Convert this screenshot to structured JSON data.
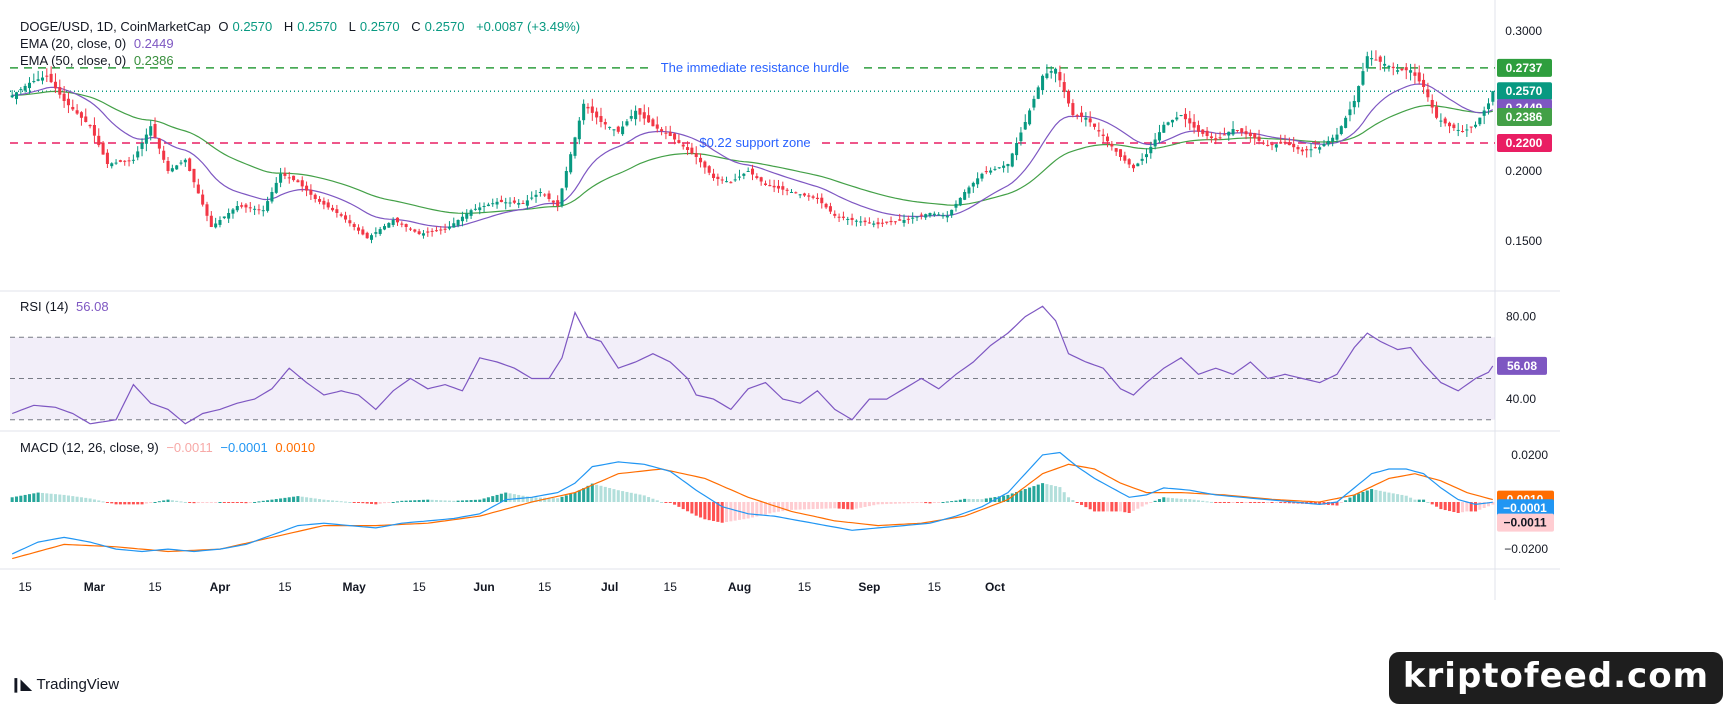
{
  "header": {
    "symbol": "DOGE/USD, 1D, CoinMarketCap",
    "o_label": "O",
    "o_value": "0.2570",
    "h_label": "H",
    "h_value": "0.2570",
    "l_label": "L",
    "l_value": "0.2570",
    "c_label": "C",
    "c_value": "0.2570",
    "change": "+0.0087 (+3.49%)",
    "ema20_label": "EMA (20, close, 0)",
    "ema20_value": "0.2449",
    "ema50_label": "EMA (50, close, 0)",
    "ema50_value": "0.2386"
  },
  "rsi_header": {
    "label": "RSI (14)",
    "value": "56.08"
  },
  "macd_header": {
    "label": "MACD (12, 26, close, 9)",
    "hist": "−0.0011",
    "macd": "−0.0001",
    "signal": "0.0010"
  },
  "footer": {
    "brand": "TradingView",
    "watermark": "kriptofeed.com"
  },
  "colors": {
    "up": "#089981",
    "down": "#f23645",
    "ema20": "#7e57c2",
    "ema50": "#43a047",
    "resistance": "#2e9e3e",
    "support": "#e91e63",
    "macd": "#2196f3",
    "signal": "#ff6d00"
  },
  "chart_data": [
    {
      "type": "candlestick",
      "title": "DOGE/USD, 1D, CoinMarketCap",
      "x_tick_labels": [
        "15",
        "Mar",
        "15",
        "Apr",
        "15",
        "May",
        "15",
        "Jun",
        "15",
        "Jul",
        "15",
        "Aug",
        "15",
        "Sep",
        "15",
        "Oct"
      ],
      "y_ticks": [
        "0.3000",
        "0.2000",
        "0.1500"
      ],
      "ylim": [
        0.115,
        0.315
      ],
      "price_labels": [
        {
          "text": "0.2737",
          "value": 0.2737,
          "color": "#2e9e3e"
        },
        {
          "text": "0.2570",
          "value": 0.257,
          "color": "#089981"
        },
        {
          "text": "0.2449",
          "value": 0.2449,
          "color": "#7e57c2"
        },
        {
          "text": "0.2386",
          "value": 0.2386,
          "color": "#43a047"
        },
        {
          "text": "0.2200",
          "value": 0.22,
          "color": "#e91e63"
        }
      ],
      "levels": [
        {
          "name": "resistance",
          "value": 0.2737,
          "annotation": "The immediate resistance hurdle"
        },
        {
          "name": "support",
          "value": 0.22,
          "annotation": "$0.22 support zone"
        },
        {
          "name": "current",
          "value": 0.257,
          "annotation": ""
        }
      ],
      "close_anchors": [
        [
          0,
          0.254
        ],
        [
          4,
          0.263
        ],
        [
          8,
          0.268
        ],
        [
          12,
          0.25
        ],
        [
          18,
          0.232
        ],
        [
          22,
          0.205
        ],
        [
          28,
          0.208
        ],
        [
          32,
          0.232
        ],
        [
          36,
          0.2
        ],
        [
          40,
          0.208
        ],
        [
          46,
          0.16
        ],
        [
          52,
          0.175
        ],
        [
          58,
          0.172
        ],
        [
          62,
          0.198
        ],
        [
          66,
          0.192
        ],
        [
          70,
          0.18
        ],
        [
          76,
          0.168
        ],
        [
          82,
          0.152
        ],
        [
          88,
          0.165
        ],
        [
          94,
          0.155
        ],
        [
          100,
          0.158
        ],
        [
          106,
          0.172
        ],
        [
          112,
          0.178
        ],
        [
          118,
          0.177
        ],
        [
          122,
          0.185
        ],
        [
          126,
          0.175
        ],
        [
          128,
          0.2
        ],
        [
          132,
          0.248
        ],
        [
          136,
          0.235
        ],
        [
          140,
          0.228
        ],
        [
          144,
          0.243
        ],
        [
          148,
          0.232
        ],
        [
          152,
          0.225
        ],
        [
          158,
          0.21
        ],
        [
          162,
          0.195
        ],
        [
          166,
          0.192
        ],
        [
          170,
          0.2
        ],
        [
          174,
          0.19
        ],
        [
          180,
          0.185
        ],
        [
          186,
          0.18
        ],
        [
          190,
          0.168
        ],
        [
          194,
          0.165
        ],
        [
          200,
          0.162
        ],
        [
          206,
          0.165
        ],
        [
          212,
          0.17
        ],
        [
          216,
          0.168
        ],
        [
          220,
          0.185
        ],
        [
          224,
          0.198
        ],
        [
          230,
          0.205
        ],
        [
          234,
          0.235
        ],
        [
          238,
          0.268
        ],
        [
          241,
          0.273
        ],
        [
          245,
          0.24
        ],
        [
          248,
          0.238
        ],
        [
          252,
          0.225
        ],
        [
          256,
          0.21
        ],
        [
          259,
          0.202
        ],
        [
          262,
          0.212
        ],
        [
          266,
          0.233
        ],
        [
          270,
          0.24
        ],
        [
          274,
          0.228
        ],
        [
          278,
          0.222
        ],
        [
          282,
          0.23
        ],
        [
          286,
          0.225
        ],
        [
          290,
          0.218
        ],
        [
          294,
          0.22
        ],
        [
          298,
          0.214
        ],
        [
          302,
          0.217
        ],
        [
          306,
          0.226
        ],
        [
          310,
          0.25
        ],
        [
          313,
          0.282
        ],
        [
          316,
          0.278
        ],
        [
          320,
          0.272
        ],
        [
          323,
          0.272
        ],
        [
          326,
          0.26
        ],
        [
          329,
          0.238
        ],
        [
          332,
          0.232
        ],
        [
          335,
          0.228
        ],
        [
          338,
          0.233
        ],
        [
          341,
          0.2483
        ],
        [
          342,
          0.257
        ]
      ]
    },
    {
      "type": "line",
      "title": "RSI (14)",
      "y_ticks": [
        "80.00",
        "40.00"
      ],
      "ylim": [
        25,
        90
      ],
      "bands": [
        30,
        50,
        70
      ],
      "current": 56.08,
      "values_anchors": [
        [
          0,
          33
        ],
        [
          5,
          37
        ],
        [
          10,
          36
        ],
        [
          14,
          33
        ],
        [
          18,
          28
        ],
        [
          24,
          30
        ],
        [
          28,
          47
        ],
        [
          32,
          38
        ],
        [
          36,
          35
        ],
        [
          40,
          28
        ],
        [
          44,
          33
        ],
        [
          48,
          35
        ],
        [
          52,
          38
        ],
        [
          56,
          40
        ],
        [
          60,
          45
        ],
        [
          64,
          55
        ],
        [
          68,
          48
        ],
        [
          72,
          42
        ],
        [
          76,
          44
        ],
        [
          80,
          42
        ],
        [
          84,
          35
        ],
        [
          88,
          44
        ],
        [
          92,
          50
        ],
        [
          96,
          45
        ],
        [
          100,
          47
        ],
        [
          104,
          44
        ],
        [
          108,
          60
        ],
        [
          112,
          58
        ],
        [
          116,
          55
        ],
        [
          120,
          50
        ],
        [
          124,
          50
        ],
        [
          127,
          60
        ],
        [
          130,
          82
        ],
        [
          133,
          70
        ],
        [
          136,
          68
        ],
        [
          140,
          55
        ],
        [
          144,
          58
        ],
        [
          148,
          62
        ],
        [
          152,
          58
        ],
        [
          156,
          50
        ],
        [
          158,
          42
        ],
        [
          162,
          40
        ],
        [
          166,
          35
        ],
        [
          170,
          45
        ],
        [
          174,
          48
        ],
        [
          178,
          40
        ],
        [
          182,
          38
        ],
        [
          186,
          44
        ],
        [
          190,
          35
        ],
        [
          194,
          30
        ],
        [
          198,
          40
        ],
        [
          202,
          40
        ],
        [
          206,
          45
        ],
        [
          210,
          50
        ],
        [
          214,
          45
        ],
        [
          218,
          52
        ],
        [
          222,
          58
        ],
        [
          226,
          66
        ],
        [
          230,
          72
        ],
        [
          234,
          80
        ],
        [
          238,
          85
        ],
        [
          241,
          78
        ],
        [
          244,
          62
        ],
        [
          248,
          58
        ],
        [
          252,
          55
        ],
        [
          256,
          45
        ],
        [
          259,
          42
        ],
        [
          262,
          48
        ],
        [
          266,
          55
        ],
        [
          270,
          60
        ],
        [
          274,
          52
        ],
        [
          278,
          55
        ],
        [
          282,
          52
        ],
        [
          286,
          58
        ],
        [
          290,
          50
        ],
        [
          294,
          52
        ],
        [
          298,
          50
        ],
        [
          302,
          48
        ],
        [
          306,
          52
        ],
        [
          310,
          65
        ],
        [
          313,
          72
        ],
        [
          316,
          68
        ],
        [
          320,
          64
        ],
        [
          323,
          65
        ],
        [
          326,
          57
        ],
        [
          330,
          48
        ],
        [
          334,
          44
        ],
        [
          338,
          50
        ],
        [
          341,
          53
        ],
        [
          342,
          56.08
        ]
      ]
    },
    {
      "type": "line",
      "title": "MACD (12, 26, close, 9)",
      "y_ticks": [
        "0.0200",
        "−0.0200"
      ],
      "ylim": [
        -0.028,
        0.028
      ],
      "series": [
        {
          "name": "MACD",
          "values_anchors": [
            [
              0,
              -0.022
            ],
            [
              6,
              -0.017
            ],
            [
              12,
              -0.015
            ],
            [
              18,
              -0.017
            ],
            [
              24,
              -0.02
            ],
            [
              30,
              -0.021
            ],
            [
              36,
              -0.02
            ],
            [
              42,
              -0.021
            ],
            [
              48,
              -0.02
            ],
            [
              54,
              -0.018
            ],
            [
              60,
              -0.014
            ],
            [
              66,
              -0.01
            ],
            [
              72,
              -0.009
            ],
            [
              78,
              -0.01
            ],
            [
              84,
              -0.011
            ],
            [
              90,
              -0.009
            ],
            [
              96,
              -0.008
            ],
            [
              102,
              -0.007
            ],
            [
              108,
              -0.005
            ],
            [
              114,
              0.001
            ],
            [
              120,
              0.002
            ],
            [
              126,
              0.004
            ],
            [
              130,
              0.008
            ],
            [
              134,
              0.015
            ],
            [
              140,
              0.017
            ],
            [
              146,
              0.016
            ],
            [
              152,
              0.013
            ],
            [
              158,
              0.005
            ],
            [
              164,
              -0.002
            ],
            [
              170,
              -0.005
            ],
            [
              176,
              -0.006
            ],
            [
              182,
              -0.008
            ],
            [
              188,
              -0.01
            ],
            [
              194,
              -0.012
            ],
            [
              200,
              -0.011
            ],
            [
              206,
              -0.01
            ],
            [
              212,
              -0.009
            ],
            [
              218,
              -0.006
            ],
            [
              224,
              -0.002
            ],
            [
              230,
              0.004
            ],
            [
              234,
              0.012
            ],
            [
              238,
              0.02
            ],
            [
              242,
              0.021
            ],
            [
              246,
              0.015
            ],
            [
              250,
              0.01
            ],
            [
              254,
              0.006
            ],
            [
              258,
              0.002
            ],
            [
              262,
              0.003
            ],
            [
              266,
              0.006
            ],
            [
              272,
              0.005
            ],
            [
              278,
              0.003
            ],
            [
              284,
              0.002
            ],
            [
              290,
              0.001
            ],
            [
              296,
              0.0
            ],
            [
              302,
              -0.001
            ],
            [
              306,
              0.0
            ],
            [
              310,
              0.006
            ],
            [
              314,
              0.012
            ],
            [
              318,
              0.014
            ],
            [
              322,
              0.014
            ],
            [
              326,
              0.012
            ],
            [
              330,
              0.006
            ],
            [
              334,
              0.001
            ],
            [
              338,
              -0.001
            ],
            [
              342,
              -0.0001
            ]
          ]
        },
        {
          "name": "Signal",
          "values_anchors": [
            [
              0,
              -0.024
            ],
            [
              12,
              -0.018
            ],
            [
              24,
              -0.019
            ],
            [
              36,
              -0.021
            ],
            [
              48,
              -0.02
            ],
            [
              60,
              -0.015
            ],
            [
              72,
              -0.01
            ],
            [
              84,
              -0.01
            ],
            [
              96,
              -0.009
            ],
            [
              108,
              -0.006
            ],
            [
              120,
              0.0
            ],
            [
              130,
              0.004
            ],
            [
              140,
              0.012
            ],
            [
              150,
              0.014
            ],
            [
              160,
              0.01
            ],
            [
              170,
              0.002
            ],
            [
              180,
              -0.004
            ],
            [
              190,
              -0.008
            ],
            [
              200,
              -0.01
            ],
            [
              210,
              -0.009
            ],
            [
              220,
              -0.006
            ],
            [
              230,
              0.001
            ],
            [
              238,
              0.012
            ],
            [
              244,
              0.016
            ],
            [
              250,
              0.014
            ],
            [
              256,
              0.008
            ],
            [
              262,
              0.004
            ],
            [
              270,
              0.004
            ],
            [
              280,
              0.003
            ],
            [
              292,
              0.001
            ],
            [
              302,
              0.0
            ],
            [
              310,
              0.003
            ],
            [
              318,
              0.01
            ],
            [
              324,
              0.012
            ],
            [
              330,
              0.009
            ],
            [
              336,
              0.004
            ],
            [
              342,
              0.001
            ]
          ]
        }
      ],
      "value_labels": [
        {
          "text": "0.0010",
          "value": 0.001,
          "color": "#ff6d00"
        },
        {
          "text": "−0.0001",
          "value": -0.0001,
          "color": "#2196f3"
        },
        {
          "text": "−0.0011",
          "value": -0.0011,
          "color": "#f7a9a7"
        }
      ]
    }
  ]
}
